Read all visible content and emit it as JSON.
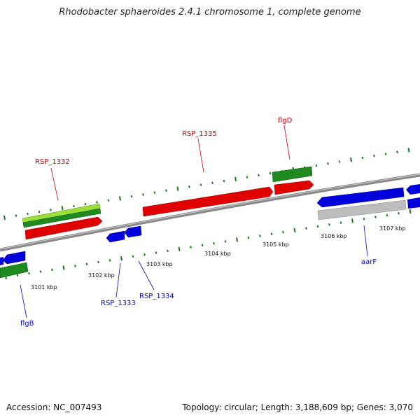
{
  "title": "Rhodobacter sphaeroides 2.4.1 chromosome 1, complete genome",
  "footer": {
    "accession": "Accession: NC_007493",
    "summary": "Topology: circular; Length: 3,188,609 bp; Genes: 3,070"
  },
  "colors": {
    "forward_cds": "#e00000",
    "reverse_cds": "#0000dd",
    "forward_label": "#cc0000",
    "reverse_label": "#0000cc",
    "green_gene": "#1f8a1f",
    "lightgreen_gene": "#9be03a",
    "grey_gene": "#bdbdbd",
    "backbone": "#8a8a8a",
    "ticks": "#1a7a1a"
  },
  "axis": {
    "unit": "kbp",
    "ticks": [
      {
        "label": "3101 kbp"
      },
      {
        "label": "3102 kbp"
      },
      {
        "label": "3103 kbp"
      },
      {
        "label": "3104 kbp"
      },
      {
        "label": "3105 kbp"
      },
      {
        "label": "3106 kbp"
      },
      {
        "label": "3107 kbp"
      }
    ]
  },
  "gene_labels": {
    "forward": [
      "RSP_1332",
      "RSP_1335",
      "flgD"
    ],
    "reverse": [
      "RSP_1333",
      "RSP_1334",
      "flgB",
      "aarF"
    ]
  }
}
